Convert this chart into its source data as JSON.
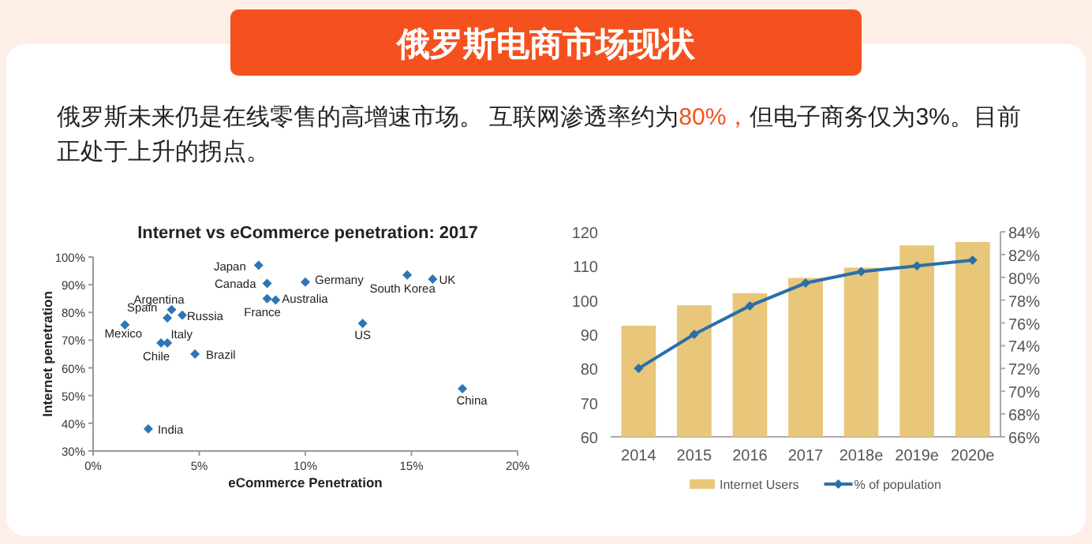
{
  "chart_data": [
    {
      "type": "other",
      "title": "俄罗斯电商市场现状",
      "annotations": [
        "俄罗斯未来仍是在线零售的高增速市场。 互联网渗透率约为",
        "80%，",
        "但电子商务仅为3%。目前正处于上升的拐点。"
      ]
    },
    {
      "type": "scatter",
      "title": "Internet vs eCommerce penetration: 2017",
      "xlabel": "eCommerce Penetration",
      "ylabel": "Internet penetration",
      "x": [
        7.8,
        8.2,
        10.0,
        14.8,
        16.0,
        8.2,
        8.6,
        3.7,
        3.5,
        4.2,
        1.5,
        12.7,
        3.5,
        3.2,
        4.8,
        17.4,
        2.6
      ],
      "values": [
        97,
        90.5,
        91,
        93.5,
        92,
        85,
        84.5,
        81,
        78,
        79,
        75.5,
        76,
        69,
        69,
        65,
        52.5,
        38
      ],
      "color": "#2e75b6",
      "marker": "diamond",
      "xlim": [
        0,
        20
      ],
      "ylim": [
        30,
        100
      ],
      "xticks": [
        {
          "value": 0,
          "label": "0%"
        },
        {
          "value": 5,
          "label": "5%"
        },
        {
          "value": 10,
          "label": "10%"
        },
        {
          "value": 15,
          "label": "15%"
        },
        {
          "value": 20,
          "label": "20%"
        }
      ],
      "yticks": [
        {
          "value": 30,
          "label": "30%"
        },
        {
          "value": 40,
          "label": "40%"
        },
        {
          "value": 50,
          "label": "50%"
        },
        {
          "value": 60,
          "label": "60%"
        },
        {
          "value": 70,
          "label": "70%"
        },
        {
          "value": 80,
          "label": "80%"
        },
        {
          "value": 90,
          "label": "90%"
        },
        {
          "value": 100,
          "label": "100%"
        }
      ],
      "annotations": [
        {
          "text": "Japan",
          "x": 7.8,
          "y": 97
        },
        {
          "text": "Canada",
          "x": 8.2,
          "y": 90.5
        },
        {
          "text": "Germany",
          "x": 10.0,
          "y": 91
        },
        {
          "text": "South Korea",
          "x": 14.8,
          "y": 93.5
        },
        {
          "text": "UK",
          "x": 16.0,
          "y": 92
        },
        {
          "text": "France",
          "x": 8.2,
          "y": 85
        },
        {
          "text": "Australia",
          "x": 8.6,
          "y": 84.5
        },
        {
          "text": "Argentina",
          "x": 3.7,
          "y": 81
        },
        {
          "text": "Spain",
          "x": 3.5,
          "y": 78
        },
        {
          "text": "Russia",
          "x": 4.2,
          "y": 79
        },
        {
          "text": "Mexico",
          "x": 1.5,
          "y": 75.5
        },
        {
          "text": "US",
          "x": 12.7,
          "y": 76
        },
        {
          "text": "Italy",
          "x": 3.5,
          "y": 69
        },
        {
          "text": "Chile",
          "x": 3.2,
          "y": 69
        },
        {
          "text": "Brazil",
          "x": 4.8,
          "y": 65
        },
        {
          "text": "China",
          "x": 17.4,
          "y": 52.5
        },
        {
          "text": "India",
          "x": 2.6,
          "y": 38
        }
      ]
    },
    {
      "type": "bar",
      "categories": [
        "2014",
        "2015",
        "2016",
        "2017",
        "2018e",
        "2019e",
        "2020e"
      ],
      "series": [
        {
          "name": "Internet Users",
          "color": "#e8c67a",
          "values": [
            92.5,
            98.5,
            102,
            106.5,
            109.5,
            116,
            117
          ]
        },
        {
          "name": "% of population",
          "type": "line",
          "axis": "y2",
          "color": "#2a6fa8",
          "marker": "diamond",
          "values": [
            72,
            75,
            77.5,
            79.5,
            80.5,
            81,
            81.5
          ]
        }
      ],
      "ylim": [
        60,
        120
      ],
      "yticks": [
        60,
        70,
        80,
        90,
        100,
        110,
        120
      ],
      "y2lim": [
        66,
        84
      ],
      "y2ticks": [
        {
          "value": 66,
          "label": "66%"
        },
        {
          "value": 68,
          "label": "68%"
        },
        {
          "value": 70,
          "label": "70%"
        },
        {
          "value": 72,
          "label": "72%"
        },
        {
          "value": 74,
          "label": "74%"
        },
        {
          "value": 76,
          "label": "76%"
        },
        {
          "value": 78,
          "label": "78%"
        },
        {
          "value": 80,
          "label": "80%"
        },
        {
          "value": 82,
          "label": "82%"
        },
        {
          "value": 84,
          "label": "84%"
        }
      ],
      "legend": "bottom"
    }
  ]
}
